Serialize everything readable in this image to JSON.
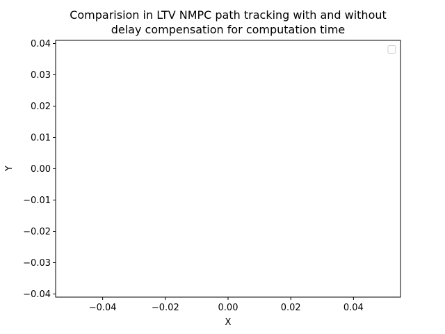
{
  "chart_data": {
    "type": "line",
    "title": [
      "Comparision in LTV NMPC path tracking with and without",
      "delay compensation for computation time"
    ],
    "xlabel": "X",
    "ylabel": "Y",
    "xlim": [
      -0.055,
      0.055
    ],
    "ylim": [
      -0.041,
      0.041
    ],
    "xticks": [
      -0.04,
      -0.02,
      0.0,
      0.02,
      0.04
    ],
    "xtick_labels": [
      "−0.04",
      "−0.02",
      "0.00",
      "0.02",
      "0.04"
    ],
    "yticks": [
      -0.04,
      -0.03,
      -0.02,
      -0.01,
      0.0,
      0.01,
      0.02,
      0.03,
      0.04
    ],
    "ytick_labels": [
      "−0.04",
      "−0.03",
      "−0.02",
      "−0.01",
      "0.00",
      "0.01",
      "0.02",
      "0.03",
      "0.04"
    ],
    "series": [],
    "legend": {
      "location": "top-right",
      "entries": []
    },
    "grid": false
  }
}
